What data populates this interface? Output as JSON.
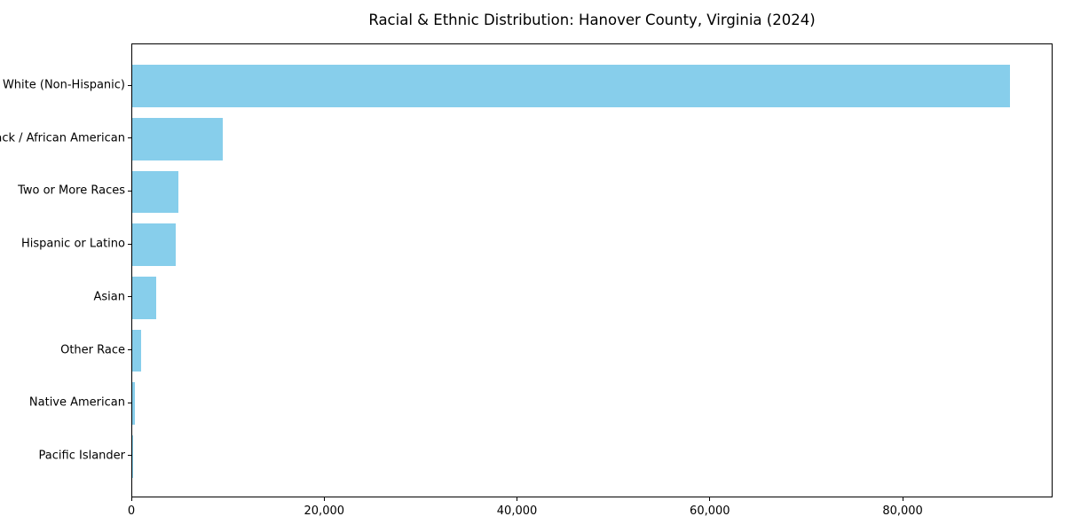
{
  "title": "Racial & Ethnic Distribution: Hanover County, Virginia (2024)",
  "chart_data": {
    "type": "bar",
    "orientation": "horizontal",
    "title": "Racial & Ethnic Distribution: Hanover County, Virginia (2024)",
    "xlabel": "",
    "ylabel": "",
    "categories": [
      "White (Non-Hispanic)",
      "Black / African American",
      "Two or More Races",
      "Hispanic or Latino",
      "Asian",
      "Other Race",
      "Native American",
      "Pacific Islander"
    ],
    "values": [
      91000,
      9400,
      4800,
      4500,
      2500,
      900,
      250,
      50
    ],
    "xlim": [
      0,
      95550
    ],
    "xticks": [
      0,
      20000,
      40000,
      60000,
      80000
    ],
    "xtick_labels": [
      "0",
      "20,000",
      "40,000",
      "60,000",
      "80,000"
    ],
    "bar_color": "#87ceeb",
    "grid": false,
    "legend_position": "none"
  }
}
